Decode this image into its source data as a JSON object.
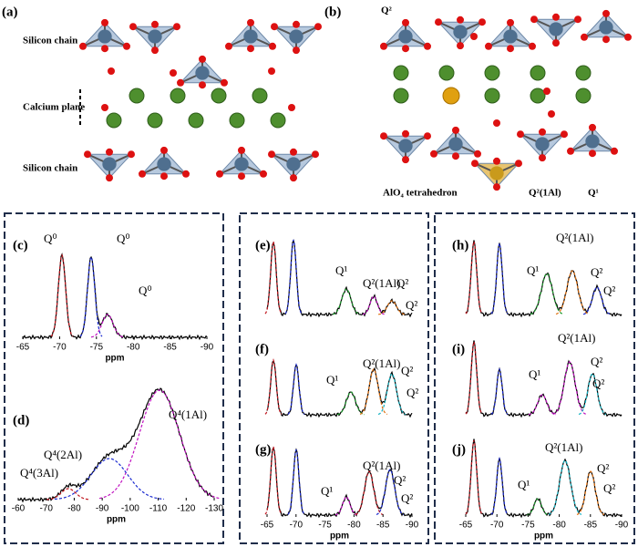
{
  "panels": [
    {
      "label": "(a)",
      "texts": [
        "Silicon chain",
        "Calcium plane",
        "Silicon chain"
      ]
    },
    {
      "label": "(b)",
      "texts": [
        "Q²",
        "AlO₄ tetrahedron",
        "Q²(1Al)",
        "Q¹"
      ]
    },
    {
      "label": "(c)",
      "annotations": [
        "Q⁰",
        "Q⁰",
        "Q⁰"
      ],
      "xticks": [
        -65,
        -70,
        -75,
        -80,
        -85,
        -90
      ],
      "xlabel": "ppm"
    },
    {
      "label": "(d)",
      "annotations": [
        "Q⁴(1Al)",
        "Q⁴(2Al)",
        "Q⁴(3Al)"
      ],
      "xticks": [
        -60,
        -70,
        -80,
        -90,
        -100,
        -110,
        -120,
        -130
      ],
      "xlabel": "ppm"
    },
    {
      "label": "(e)",
      "annotations": [
        "Q¹",
        "Q²(1Al)",
        "Q²",
        "Q²"
      ]
    },
    {
      "label": "(f)",
      "annotations": [
        "Q²(1Al)",
        "Q¹",
        "Q²",
        "Q²"
      ]
    },
    {
      "label": "(g)",
      "annotations": [
        "Q²(1Al)",
        "Q²",
        "Q¹",
        "Q²"
      ],
      "xticks": [
        -65,
        -70,
        -75,
        -80,
        -85,
        -90
      ],
      "xlabel": "ppm"
    },
    {
      "label": "(h)",
      "annotations": [
        "Q²(1Al)",
        "Q¹",
        "Q²",
        "Q²"
      ]
    },
    {
      "label": "(i)",
      "annotations": [
        "Q²(1Al)",
        "Q²",
        "Q¹",
        "Q²"
      ]
    },
    {
      "label": "(j)",
      "annotations": [
        "Q²(1Al)",
        "Q²",
        "Q¹",
        "Q²"
      ],
      "xticks": [
        -65,
        -70,
        -75,
        -80,
        -85,
        -90
      ],
      "xlabel": "ppm"
    }
  ]
}
